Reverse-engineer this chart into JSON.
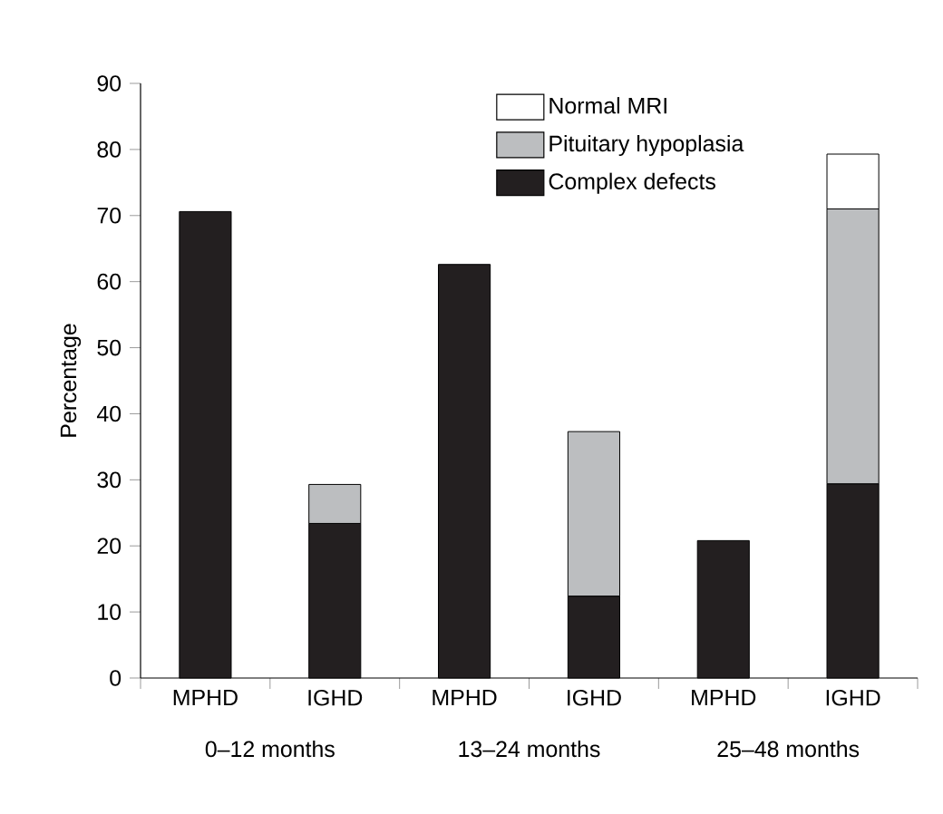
{
  "chart_data": {
    "type": "bar",
    "stacked": true,
    "ylabel": "Percentage",
    "categories": [
      "MPHD",
      "IGHD",
      "MPHD",
      "IGHD",
      "MPHD",
      "IGHD"
    ],
    "series": [
      {
        "name": "Complex defects",
        "color": "#231f20",
        "values": [
          70.6,
          23.4,
          62.6,
          12.4,
          20.8,
          29.4
        ]
      },
      {
        "name": "Pituitary hypoplasia",
        "color": "#bcbec0",
        "values": [
          null,
          5.9,
          null,
          24.9,
          null,
          41.6
        ]
      },
      {
        "name": "Normal MRI",
        "color": "#ffffff",
        "values": [
          null,
          null,
          null,
          null,
          null,
          8.3
        ]
      }
    ],
    "ylim": [
      0,
      90
    ],
    "yticks": [
      0,
      10,
      20,
      30,
      40,
      50,
      60,
      70,
      80,
      90
    ],
    "legend": "top right",
    "annotations": [
      "0–12 months",
      "13–24 months",
      "25–48 months"
    ]
  }
}
